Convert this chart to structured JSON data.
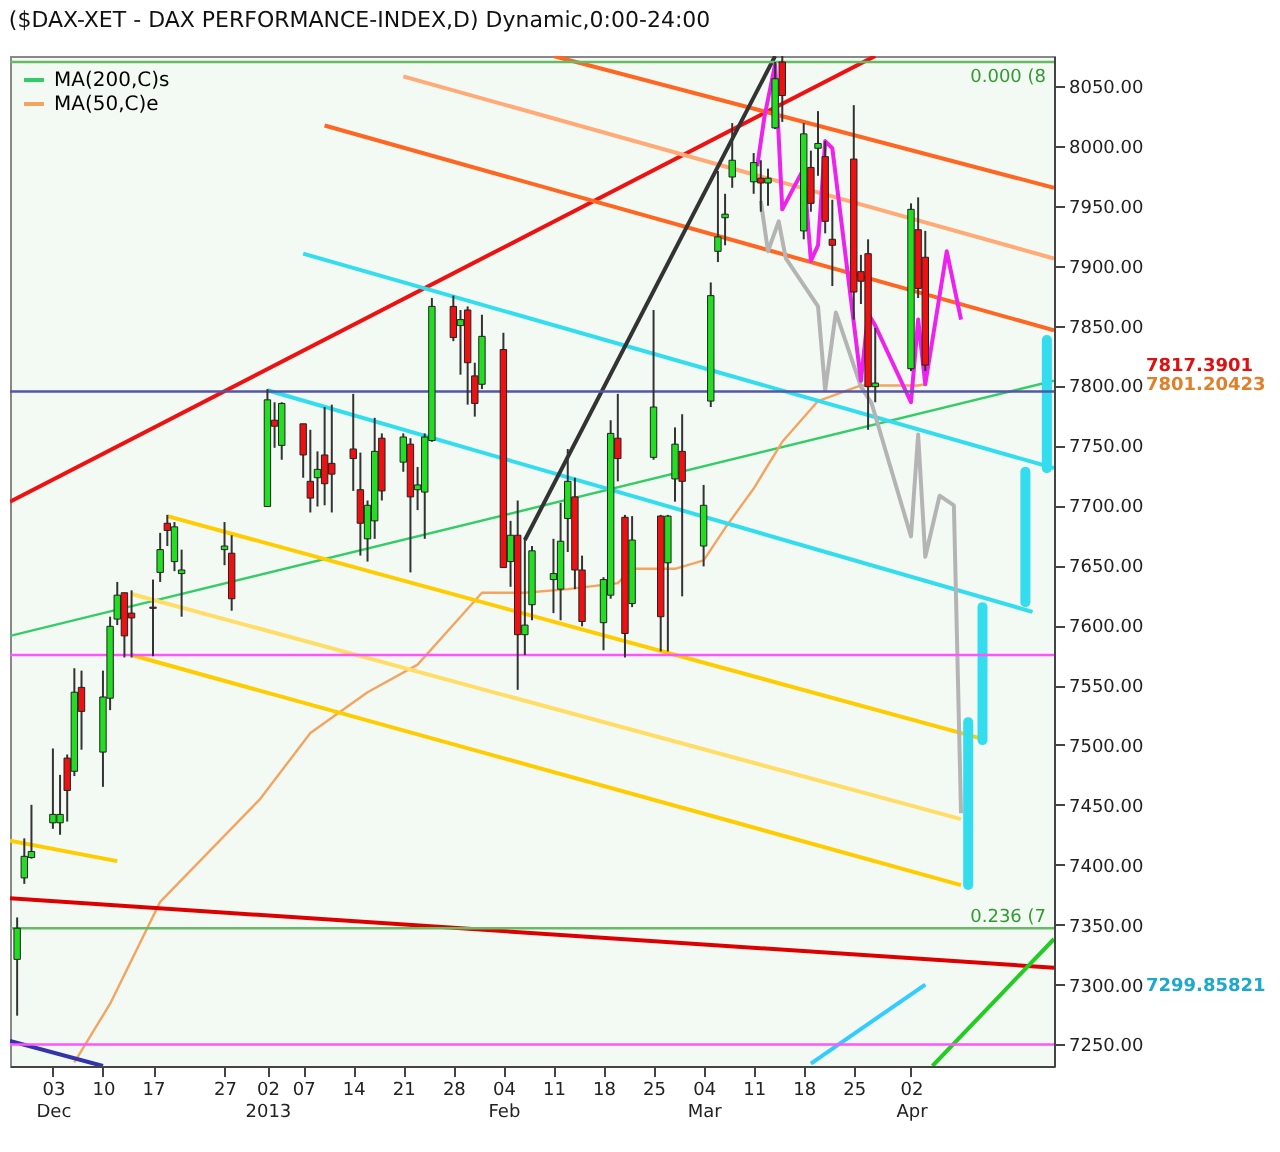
{
  "chart_data": {
    "type": "candlestick",
    "title": "($DAX-XET - DAX PERFORMANCE-INDEX,D) Dynamic,0:00-24:00",
    "x": [
      "2012-11-28",
      "2012-11-29",
      "2012-11-30",
      "2012-12-03",
      "2012-12-04",
      "2012-12-05",
      "2012-12-06",
      "2012-12-07",
      "2012-12-10",
      "2012-12-11",
      "2012-12-12",
      "2012-12-13",
      "2012-12-14",
      "2012-12-17",
      "2012-12-18",
      "2012-12-19",
      "2012-12-20",
      "2012-12-21",
      "2012-12-27",
      "2012-12-28",
      "2013-01-02",
      "2013-01-03",
      "2013-01-04",
      "2013-01-07",
      "2013-01-08",
      "2013-01-09",
      "2013-01-10",
      "2013-01-11",
      "2013-01-14",
      "2013-01-15",
      "2013-01-16",
      "2013-01-17",
      "2013-01-18",
      "2013-01-21",
      "2013-01-22",
      "2013-01-23",
      "2013-01-24",
      "2013-01-25",
      "2013-01-28",
      "2013-01-29",
      "2013-01-30",
      "2013-01-31",
      "2013-02-01",
      "2013-02-04",
      "2013-02-05",
      "2013-02-06",
      "2013-02-07",
      "2013-02-08",
      "2013-02-11",
      "2013-02-12",
      "2013-02-13",
      "2013-02-14",
      "2013-02-15",
      "2013-02-18",
      "2013-02-19",
      "2013-02-20",
      "2013-02-21",
      "2013-02-22",
      "2013-02-25",
      "2013-02-26",
      "2013-02-27",
      "2013-02-28",
      "2013-03-01",
      "2013-03-04",
      "2013-03-05",
      "2013-03-06",
      "2013-03-07",
      "2013-03-08",
      "2013-03-11",
      "2013-03-12",
      "2013-03-13",
      "2013-03-14",
      "2013-03-15",
      "2013-03-18",
      "2013-03-19",
      "2013-03-20",
      "2013-03-21",
      "2013-03-22",
      "2013-03-25",
      "2013-03-26",
      "2013-03-27",
      "2013-03-28",
      "2013-04-02",
      "2013-04-03",
      "2013-04-04"
    ],
    "ohlc": [
      [
        7321,
        7356,
        7274,
        7347
      ],
      [
        7389,
        7422,
        7384,
        7407
      ],
      [
        7406,
        7450,
        7405,
        7411
      ],
      [
        7435,
        7497,
        7430,
        7442
      ],
      [
        7435,
        7475,
        7425,
        7442
      ],
      [
        7489,
        7492,
        7436,
        7462
      ],
      [
        7478,
        7564,
        7474,
        7544
      ],
      [
        7548,
        7562,
        7496,
        7528
      ],
      [
        7494,
        7562,
        7465,
        7540
      ],
      [
        7539,
        7607,
        7529,
        7599
      ],
      [
        7605,
        7636,
        7600,
        7625
      ],
      [
        7627,
        7627,
        7573,
        7591
      ],
      [
        7610,
        7629,
        7573,
        7606
      ],
      [
        7615,
        7638,
        7574,
        7614
      ],
      [
        7644,
        7677,
        7636,
        7663
      ],
      [
        7685,
        7692,
        7666,
        7679
      ],
      [
        7653,
        7686,
        7645,
        7682
      ],
      [
        7643,
        7663,
        7607,
        7646
      ],
      [
        7663,
        7686,
        7650,
        7666
      ],
      [
        7660,
        7675,
        7612,
        7622
      ],
      [
        7699,
        7797,
        7699,
        7788
      ],
      [
        7771,
        7786,
        7748,
        7766
      ],
      [
        7750,
        7786,
        7738,
        7785
      ],
      [
        7768,
        7768,
        7723,
        7742
      ],
      [
        7720,
        7763,
        7694,
        7706
      ],
      [
        7723,
        7745,
        7699,
        7730
      ],
      [
        7742,
        7782,
        7700,
        7718
      ],
      [
        7735,
        7784,
        7694,
        7726
      ],
      [
        7747,
        7793,
        7712,
        7739
      ],
      [
        7713,
        7744,
        7658,
        7685
      ],
      [
        7672,
        7704,
        7653,
        7700
      ],
      [
        7687,
        7773,
        7672,
        7745
      ],
      [
        7756,
        7760,
        7704,
        7712
      ],
      [
        7736,
        7760,
        7728,
        7757
      ],
      [
        7751,
        7756,
        7644,
        7707
      ],
      [
        7713,
        7732,
        7696,
        7717
      ],
      [
        7711,
        7760,
        7672,
        7757
      ],
      [
        7754,
        7873,
        7753,
        7866
      ],
      [
        7866,
        7875,
        7837,
        7840
      ],
      [
        7850,
        7863,
        7809,
        7855
      ],
      [
        7863,
        7866,
        7784,
        7819
      ],
      [
        7808,
        7819,
        7774,
        7785
      ],
      [
        7801,
        7859,
        7797,
        7841
      ],
      [
        7830,
        7844,
        7648,
        7648
      ],
      [
        7653,
        7687,
        7632,
        7675
      ],
      [
        7675,
        7704,
        7546,
        7592
      ],
      [
        7592,
        7673,
        7575,
        7600
      ],
      [
        7617,
        7666,
        7604,
        7662
      ],
      [
        7638,
        7672,
        7610,
        7643
      ],
      [
        7630,
        7702,
        7604,
        7670
      ],
      [
        7689,
        7747,
        7661,
        7720
      ],
      [
        7707,
        7723,
        7630,
        7646
      ],
      [
        7646,
        7658,
        7599,
        7603
      ],
      [
        7602,
        7640,
        7579,
        7638
      ],
      [
        7625,
        7771,
        7622,
        7760
      ],
      [
        7756,
        7793,
        7720,
        7739
      ],
      [
        7690,
        7692,
        7573,
        7593
      ],
      [
        7618,
        7691,
        7615,
        7671
      ],
      [
        7740,
        7863,
        7738,
        7782
      ],
      [
        7691,
        7692,
        7578,
        7607
      ],
      [
        7652,
        7692,
        7578,
        7691
      ],
      [
        7722,
        7765,
        7703,
        7751
      ],
      [
        7745,
        7776,
        7624,
        7720
      ],
      [
        7666,
        7717,
        7649,
        7700
      ],
      [
        7787,
        7886,
        7782,
        7875
      ],
      [
        7912,
        7979,
        7903,
        7924
      ],
      [
        7940,
        7960,
        7917,
        7943
      ],
      [
        7974,
        8019,
        7965,
        7988
      ],
      [
        7970,
        7994,
        7960,
        7986
      ],
      [
        7973,
        7988,
        7945,
        7969
      ],
      [
        7969,
        7981,
        7950,
        7973
      ],
      [
        8015,
        8070,
        8014,
        8056
      ],
      [
        8070,
        8075,
        8020,
        8042
      ],
      [
        7929,
        8019,
        7922,
        8010
      ],
      [
        7982,
        7996,
        7945,
        7952
      ],
      [
        7998,
        8029,
        7975,
        8002
      ],
      [
        7991,
        8004,
        7927,
        7937
      ],
      [
        7922,
        7955,
        7883,
        7917
      ],
      [
        7989,
        8034,
        7855,
        7878
      ],
      [
        7895,
        7909,
        7868,
        7887
      ],
      [
        7910,
        7922,
        7763,
        7799
      ],
      [
        7799,
        7848,
        7786,
        7802
      ],
      [
        7814,
        7952,
        7812,
        7947
      ],
      [
        7930,
        7957,
        7873,
        7881
      ],
      [
        7907,
        7929,
        7812,
        7817
      ]
    ],
    "series": [
      {
        "name": "MA(200,C)s",
        "color": "#33cc66",
        "type": "line",
        "x": [
          "2012-11-27",
          "2013-04-22"
        ],
        "values": [
          7591,
          7804
        ]
      },
      {
        "name": "MA(50,C)e",
        "color": "#f4a460",
        "type": "line",
        "x": [
          "2012-12-06",
          "2012-12-11",
          "2012-12-18",
          "2013-01-01",
          "2013-01-08",
          "2013-01-16",
          "2013-01-23",
          "2013-01-29",
          "2013-02-01",
          "2013-02-07",
          "2013-02-13",
          "2013-02-20",
          "2013-02-22",
          "2013-02-28",
          "2013-03-04",
          "2013-03-07",
          "2013-03-11",
          "2013-03-15",
          "2013-03-20",
          "2013-03-26",
          "2013-04-03",
          "2013-04-04"
        ],
        "values": [
          7235,
          7284,
          7369,
          7455,
          7510,
          7544,
          7567,
          7607,
          7627,
          7627,
          7630,
          7635,
          7647,
          7647,
          7654,
          7681,
          7714,
          7753,
          7787,
          7800,
          7800,
          7801
        ]
      },
      {
        "color": "#ee1111",
        "type": "line",
        "x": [
          "2012-11-27",
          "2013-03-28"
        ],
        "values": [
          7703,
          8075
        ]
      },
      {
        "color": "#dd0000",
        "type": "line",
        "x": [
          "2012-11-27",
          "2013-04-22"
        ],
        "values": [
          7372,
          7314
        ]
      },
      {
        "color": "#ff6622",
        "type": "line",
        "x": [
          "2013-02-11",
          "2013-04-22"
        ],
        "values": [
          8075,
          7965
        ]
      },
      {
        "color": "#ff6622",
        "type": "line",
        "x": [
          "2013-01-10",
          "2013-04-22"
        ],
        "values": [
          8017,
          7846
        ]
      },
      {
        "color": "#ffaa77",
        "type": "line",
        "x": [
          "2013-01-21",
          "2013-04-22"
        ],
        "values": [
          8058,
          7906
        ]
      },
      {
        "color": "#33ddee",
        "type": "line",
        "x": [
          "2013-01-07",
          "2013-04-22"
        ],
        "values": [
          7910,
          7731
        ]
      },
      {
        "color": "#33ddee",
        "type": "line",
        "x": [
          "2013-01-02",
          "2013-04-19"
        ],
        "values": [
          7796,
          7611
        ]
      },
      {
        "color": "#ffcc00",
        "type": "line",
        "x": [
          "2012-12-19",
          "2013-04-12"
        ],
        "values": [
          7691,
          7505
        ]
      },
      {
        "color": "#ffdd66",
        "type": "line",
        "x": [
          "2012-12-14",
          "2013-04-09"
        ],
        "values": [
          7626,
          7438
        ]
      },
      {
        "color": "#ffcc00",
        "type": "line",
        "x": [
          "2012-12-14",
          "2013-04-09"
        ],
        "values": [
          7575,
          7383
        ]
      },
      {
        "color": "#ffcc00",
        "type": "line",
        "x": [
          "2012-11-27",
          "2012-12-12"
        ],
        "values": [
          7420,
          7403
        ]
      },
      {
        "color": "#333333",
        "type": "line",
        "x": [
          "2013-02-07",
          "2013-03-14"
        ],
        "values": [
          7671,
          8075
        ]
      },
      {
        "color": "#22cc22",
        "type": "line",
        "x": [
          "2013-04-05",
          "2013-04-22"
        ],
        "values": [
          7232,
          7338
        ]
      },
      {
        "color": "#33ccff",
        "type": "line",
        "x": [
          "2013-03-19",
          "2013-04-04"
        ],
        "values": [
          7234,
          7300
        ]
      },
      {
        "color": "#3333aa",
        "type": "line",
        "x": [
          "2012-11-27",
          "2012-12-10"
        ],
        "values": [
          7253,
          7232
        ]
      },
      {
        "color": "#b4b4b4",
        "type": "line",
        "x": [
          "2013-03-12",
          "2013-03-13",
          "2013-03-14T12:00",
          "2013-03-15T12:00",
          "2013-03-20",
          "2013-03-21",
          "2013-03-22T12:00",
          "2013-03-26",
          "2013-03-27T12:00",
          "2013-04-02",
          "2013-04-03",
          "2013-04-04",
          "2013-04-06",
          "2013-04-08",
          "2013-04-09"
        ],
        "values": [
          7954,
          7912,
          7937,
          7906,
          7866,
          7796,
          7861,
          7799,
          7785,
          7674,
          7759,
          7657,
          7708,
          7700,
          7443
        ]
      },
      {
        "color": "#ee22ee",
        "type": "line",
        "x": [
          "2013-03-11T12:00",
          "2013-03-12T12:00",
          "2013-03-14",
          "2013-03-15",
          "2013-03-18",
          "2013-03-19",
          "2013-03-20",
          "2013-03-21",
          "2013-03-22",
          "2013-03-26",
          "2013-03-27",
          "2013-03-28",
          "2013-04-02",
          "2013-04-03",
          "2013-04-04",
          "2013-04-07",
          "2013-04-09"
        ],
        "values": [
          7983,
          8024,
          8068,
          7947,
          7981,
          7904,
          7917,
          8004,
          7998,
          7804,
          7860,
          7850,
          7786,
          7855,
          7801,
          7912,
          7855
        ]
      },
      {
        "color": "#33ddee",
        "type": "line",
        "x": [
          "2013-04-10",
          "2013-04-10"
        ],
        "values": [
          7383,
          7519
        ]
      },
      {
        "color": "#33ddee",
        "type": "line",
        "x": [
          "2013-04-12",
          "2013-04-12"
        ],
        "values": [
          7504,
          7615
        ]
      },
      {
        "color": "#33ddee",
        "type": "line",
        "x": [
          "2013-04-18",
          "2013-04-18"
        ],
        "values": [
          7619,
          7728
        ]
      },
      {
        "color": "#33ddee",
        "type": "line",
        "x": [
          "2013-04-21",
          "2013-04-21"
        ],
        "values": [
          7731,
          7838
        ]
      }
    ],
    "ref_lines": [
      {
        "axis": "y",
        "value": 8070,
        "color": "#66bb66"
      },
      {
        "axis": "y",
        "value": 7347,
        "color": "#66bb66"
      },
      {
        "axis": "y",
        "value": 7575,
        "color": "#ff55ff"
      },
      {
        "axis": "y",
        "value": 7250,
        "color": "#ff55ff"
      },
      {
        "axis": "y",
        "value": 7795,
        "color": "#5555aa"
      }
    ],
    "annotations": [
      {
        "text": "0.000 (8",
        "y": 8070
      },
      {
        "text": "0.236 (7",
        "y": 7347
      },
      "7817.3901",
      "7801.20423",
      "7299.85821"
    ],
    "xlim": [
      "2012-11-27",
      "2013-04-22"
    ],
    "xticks": [
      {
        "value": "2012-12-03",
        "label": "03\nDec"
      },
      {
        "value": "2012-12-10",
        "label": "10"
      },
      {
        "value": "2012-12-17",
        "label": "17"
      },
      {
        "value": "2012-12-27",
        "label": "27"
      },
      {
        "value": "2013-01-02",
        "label": "02\n2013"
      },
      {
        "value": "2013-01-07",
        "label": "07"
      },
      {
        "value": "2013-01-14",
        "label": "14"
      },
      {
        "value": "2013-01-21",
        "label": "21"
      },
      {
        "value": "2013-01-28",
        "label": "28"
      },
      {
        "value": "2013-02-04",
        "label": "04\nFeb"
      },
      {
        "value": "2013-02-11",
        "label": "11"
      },
      {
        "value": "2013-02-18",
        "label": "18"
      },
      {
        "value": "2013-02-25",
        "label": "25"
      },
      {
        "value": "2013-03-04",
        "label": "04\nMar"
      },
      {
        "value": "2013-03-11",
        "label": "11"
      },
      {
        "value": "2013-03-18",
        "label": "18"
      },
      {
        "value": "2013-03-25",
        "label": "25"
      },
      {
        "value": "2013-04-02",
        "label": "02\nApr"
      }
    ],
    "ylim": [
      7232,
      8075
    ],
    "yticks": [
      {
        "value": 7250,
        "label": "7250.00"
      },
      {
        "value": 7300,
        "label": "7300.00"
      },
      {
        "value": 7350,
        "label": "7350.00"
      },
      {
        "value": 7400,
        "label": "7400.00"
      },
      {
        "value": 7450,
        "label": "7450.00"
      },
      {
        "value": 7500,
        "label": "7500.00"
      },
      {
        "value": 7550,
        "label": "7550.00"
      },
      {
        "value": 7600,
        "label": "7600.00"
      },
      {
        "value": 7650,
        "label": "7650.00"
      },
      {
        "value": 7700,
        "label": "7700.00"
      },
      {
        "value": 7750,
        "label": "7750.00"
      },
      {
        "value": 7800,
        "label": "7800.00"
      },
      {
        "value": 7850,
        "label": "7850.00"
      },
      {
        "value": 7900,
        "label": "7900.00"
      },
      {
        "value": 7950,
        "label": "7950.00"
      },
      {
        "value": 8000,
        "label": "8000.00"
      },
      {
        "value": 8050,
        "label": "8050.00"
      }
    ],
    "legend": "top left"
  }
}
